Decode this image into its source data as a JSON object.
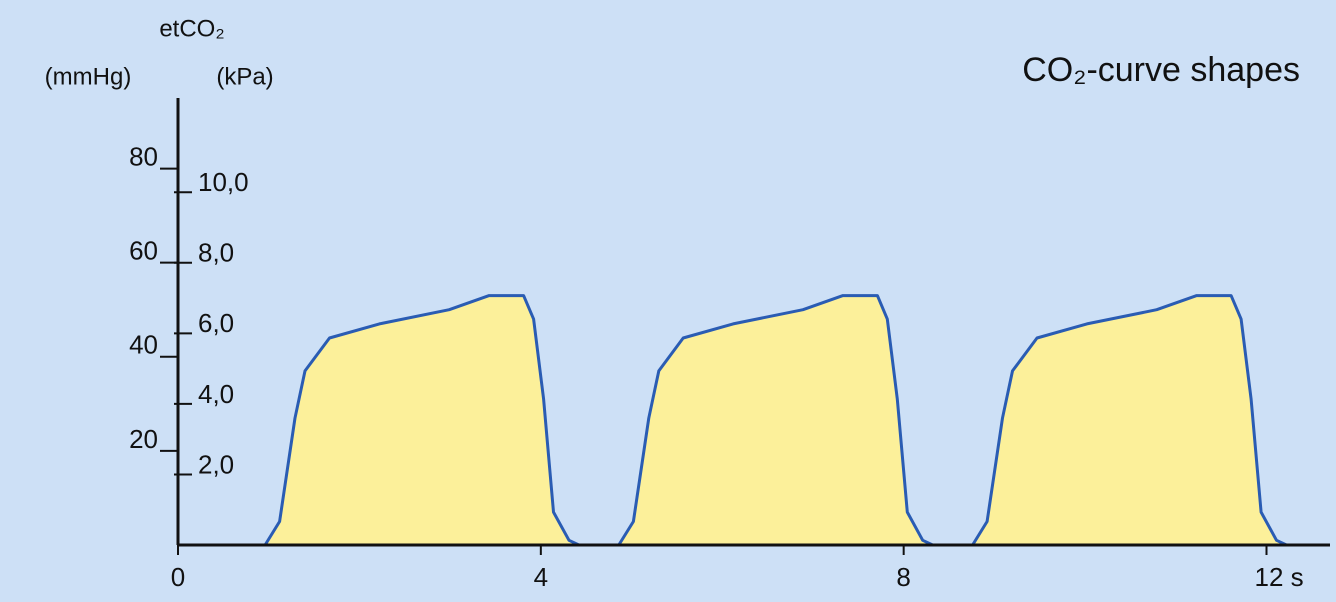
{
  "chart_data": {
    "type": "area",
    "title": "CO₂-curve shapes",
    "ylabel": "etCO₂",
    "ylabel_unit": "(mmHg)",
    "y2label_unit": "(kPa)",
    "x": [
      0,
      0.96,
      1.12,
      1.29,
      1.4,
      1.67,
      2.22,
      2.99,
      3.43,
      3.81,
      3.92,
      4.03,
      4.14,
      4.31,
      4.42,
      4.86,
      5.02,
      5.19,
      5.3,
      5.57,
      6.12,
      6.89,
      7.33,
      7.71,
      7.82,
      7.93,
      8.04,
      8.21,
      8.32,
      8.76,
      8.92,
      9.09,
      9.2,
      9.47,
      10.02,
      10.79,
      11.23,
      11.61,
      11.72,
      11.83,
      11.94,
      12.11,
      12.22
    ],
    "series": [
      {
        "color": "#2a5cb3",
        "fill": "#fcf09a",
        "values": [
          0,
          0,
          5,
          27,
          37,
          44,
          47,
          50,
          53,
          53,
          48,
          31,
          7,
          1,
          0,
          0,
          5,
          27,
          37,
          44,
          47,
          50,
          53,
          53,
          48,
          31,
          7,
          1,
          0,
          0,
          5,
          27,
          37,
          44,
          47,
          50,
          53,
          53,
          48,
          31,
          7,
          1,
          0
        ]
      }
    ],
    "xlim": [
      0,
      12.7
    ],
    "xticks": [
      0,
      4,
      8,
      {
        "value": 12,
        "label": "12 s"
      }
    ],
    "ylim": [
      0,
      95
    ],
    "yticks": [
      20,
      40,
      60,
      80
    ],
    "y2lim": [
      0,
      12.67
    ],
    "y2ticks": [
      {
        "value": 2,
        "label": "2,0"
      },
      {
        "value": 4,
        "label": "4,0"
      },
      {
        "value": 6,
        "label": "6,0"
      },
      {
        "value": 8,
        "label": "8,0"
      },
      {
        "value": 10,
        "label": "10,0"
      }
    ]
  }
}
